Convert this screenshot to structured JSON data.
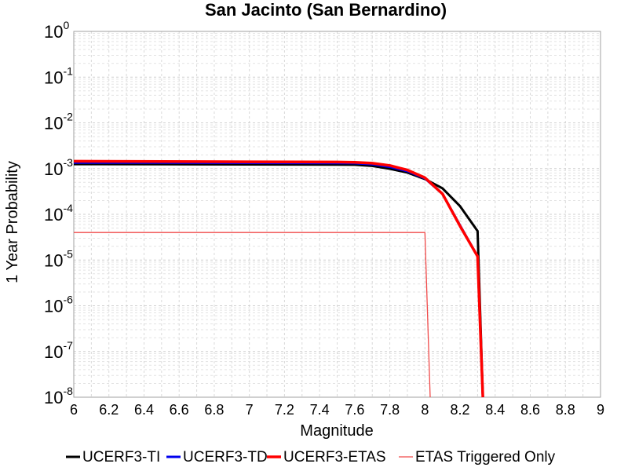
{
  "chart_data": {
    "type": "line",
    "title": "San Jacinto (San Bernardino)",
    "xlabel": "Magnitude",
    "ylabel": "1 Year Probability",
    "xlim": [
      6,
      9
    ],
    "ylim": [
      1e-08,
      1
    ],
    "yscale": "log",
    "grid": true,
    "legend_position": "bottom",
    "xticks": [
      "6",
      "6.2",
      "6.4",
      "6.6",
      "6.8",
      "7",
      "7.2",
      "7.4",
      "7.6",
      "7.8",
      "8",
      "8.2",
      "8.4",
      "8.6",
      "8.8",
      "9"
    ],
    "yticks": [
      {
        "base": "10",
        "exp": "-8",
        "value": 1e-08
      },
      {
        "base": "10",
        "exp": "-7",
        "value": 1e-07
      },
      {
        "base": "10",
        "exp": "-6",
        "value": 1e-06
      },
      {
        "base": "10",
        "exp": "-5",
        "value": 1e-05
      },
      {
        "base": "10",
        "exp": "-4",
        "value": 0.0001
      },
      {
        "base": "10",
        "exp": "-3",
        "value": 0.001
      },
      {
        "base": "10",
        "exp": "-2",
        "value": 0.01
      },
      {
        "base": "10",
        "exp": "-1",
        "value": 0.1
      },
      {
        "base": "10",
        "exp": "0",
        "value": 1
      }
    ],
    "series": [
      {
        "name": "UCERF3-TI",
        "color": "#000000",
        "line_width": 3,
        "x": [
          6.0,
          6.5,
          7.0,
          7.5,
          7.6,
          7.7,
          7.8,
          7.9,
          8.0,
          8.1,
          8.2,
          8.3,
          8.33
        ],
        "y": [
          0.00125,
          0.00124,
          0.00123,
          0.00122,
          0.00121,
          0.00114,
          0.00099,
          0.00082,
          0.00059,
          0.00037,
          0.00015,
          4.3e-05,
          1e-08
        ]
      },
      {
        "name": "UCERF3-TD",
        "color": "#0000ee",
        "line_width": 3,
        "x": [
          6.0,
          6.5,
          7.0,
          7.5,
          7.6,
          7.7,
          7.8,
          7.9,
          8.0,
          8.1,
          8.2,
          8.3,
          8.33
        ],
        "y": [
          0.00135,
          0.00134,
          0.00133,
          0.00132,
          0.00131,
          0.00124,
          0.00109,
          0.00088,
          0.00061,
          0.00028,
          5.7e-05,
          1.2e-05,
          1e-08
        ]
      },
      {
        "name": "UCERF3-ETAS",
        "color": "#ff0000",
        "line_width": 3.5,
        "x": [
          6.0,
          6.5,
          7.0,
          7.5,
          7.6,
          7.7,
          7.8,
          7.9,
          8.0,
          8.1,
          8.2,
          8.3,
          8.33
        ],
        "y": [
          0.00145,
          0.00143,
          0.00141,
          0.00139,
          0.00137,
          0.00131,
          0.00117,
          0.00093,
          0.00063,
          0.00028,
          5.5e-05,
          1.2e-05,
          1e-08
        ]
      },
      {
        "name": "ETAS Triggered Only",
        "color": "#f04a4a",
        "line_width": 1.3,
        "x": [
          6.0,
          7.0,
          7.5,
          8.0,
          8.03
        ],
        "y": [
          4e-05,
          4e-05,
          4e-05,
          4e-05,
          1e-08
        ]
      }
    ]
  }
}
